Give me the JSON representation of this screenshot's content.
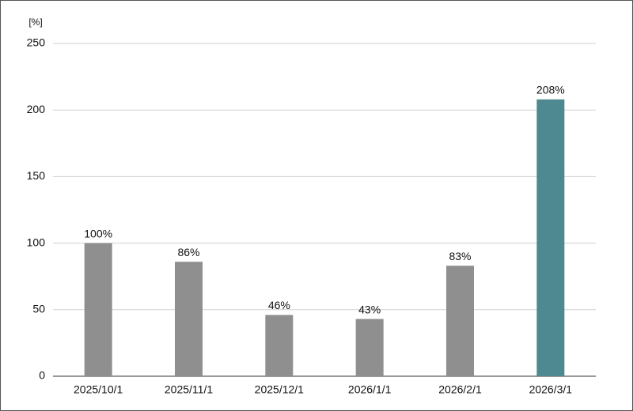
{
  "chart_data": {
    "type": "bar",
    "y_axis_label": "[%]",
    "categories": [
      "2025/10/1",
      "2025/11/1",
      "2025/12/1",
      "2026/1/1",
      "2026/2/1",
      "2026/3/1"
    ],
    "values": [
      100,
      86,
      46,
      43,
      83,
      208
    ],
    "value_labels": [
      "100%",
      "86%",
      "46%",
      "43%",
      "83%",
      "208%"
    ],
    "colors": [
      "#8f8f8f",
      "#8f8f8f",
      "#8f8f8f",
      "#8f8f8f",
      "#8f8f8f",
      "#4e8890"
    ],
    "ylim": [
      0,
      250
    ],
    "yticks": [
      0,
      50,
      100,
      150,
      200,
      250
    ],
    "grid": true
  }
}
